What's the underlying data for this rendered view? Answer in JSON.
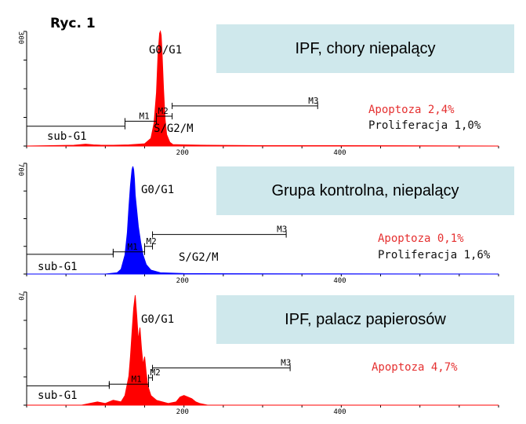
{
  "figure_label": "Ryc. 1",
  "chart_data": [
    {
      "type": "area",
      "title": "IPF, chory niepalący",
      "color": "#ff0000",
      "ylim": [
        0,
        300
      ],
      "xlim": [
        0,
        600
      ],
      "y_ticks": [
        "300"
      ],
      "x_ticks": [
        "200",
        "400"
      ],
      "x": [
        0,
        60,
        75,
        85,
        95,
        110,
        130,
        150,
        158,
        162,
        165,
        167,
        169,
        170,
        171,
        172,
        174,
        176,
        178,
        182,
        186,
        200,
        230,
        300,
        400,
        600
      ],
      "y": [
        0,
        2,
        5,
        3,
        2,
        2,
        3,
        6,
        20,
        60,
        140,
        240,
        295,
        300,
        290,
        250,
        150,
        70,
        30,
        10,
        4,
        3,
        2,
        1,
        1,
        0
      ],
      "labels": {
        "peak": "G0/G1",
        "subg1": "sub-G1",
        "sg2m": "S/G2/M",
        "m1": "M1",
        "m2": "M2",
        "m3": "M3"
      },
      "markers": {
        "subg1": {
          "x": 0,
          "y": 52
        },
        "m1": {
          "x1": 125,
          "x2": 165,
          "y": 65
        },
        "m2": {
          "x1": 165,
          "x2": 185,
          "y": 78
        },
        "m3": {
          "x1": 185,
          "x2": 370,
          "y": 105
        }
      },
      "annotations": [
        {
          "text": "Apoptoza 2,4%",
          "style": "apop"
        },
        {
          "text": "Proliferacja 1,0%",
          "style": "prol"
        }
      ]
    },
    {
      "type": "area",
      "title": "Grupa kontrolna, niepalący",
      "color": "#0000ff",
      "ylim": [
        0,
        700
      ],
      "xlim": [
        0,
        600
      ],
      "y_ticks": [
        "700"
      ],
      "x_ticks": [
        "200",
        "400"
      ],
      "x": [
        0,
        100,
        115,
        120,
        125,
        128,
        130,
        132,
        134,
        135,
        136,
        137,
        138,
        140,
        142,
        145,
        148,
        152,
        158,
        170,
        200,
        400,
        600
      ],
      "y": [
        0,
        0,
        8,
        30,
        120,
        260,
        420,
        560,
        660,
        680,
        660,
        600,
        500,
        400,
        300,
        200,
        120,
        60,
        25,
        8,
        3,
        1,
        0
      ],
      "labels": {
        "peak": "G0/G1",
        "subg1": "sub-G1",
        "sg2m": "S/G2/M",
        "m1": "M1",
        "m2": "M2",
        "m3": "M3"
      },
      "markers": {
        "subg1": {
          "x": 0,
          "y": 125
        },
        "m1": {
          "x1": 110,
          "x2": 150,
          "y": 140
        },
        "m2": {
          "x1": 150,
          "x2": 160,
          "y": 175
        },
        "m3": {
          "x1": 160,
          "x2": 330,
          "y": 250
        }
      },
      "annotations": [
        {
          "text": "Apoptoza 0,1%",
          "style": "apop"
        },
        {
          "text": "Proliferacja 1,6%",
          "style": "prol"
        }
      ]
    },
    {
      "type": "area",
      "title": "IPF, palacz papierosów",
      "color": "#ff0000",
      "ylim": [
        0,
        70
      ],
      "xlim": [
        0,
        600
      ],
      "y_ticks": [
        "70"
      ],
      "x_ticks": [
        "200",
        "400"
      ],
      "x": [
        0,
        70,
        80,
        90,
        100,
        110,
        120,
        125,
        130,
        132,
        134,
        136,
        138,
        140,
        142,
        144,
        146,
        148,
        150,
        152,
        154,
        158,
        165,
        180,
        190,
        195,
        200,
        205,
        210,
        215,
        220,
        230,
        300,
        600
      ],
      "y": [
        0,
        0,
        1,
        2,
        1,
        3,
        2,
        6,
        18,
        30,
        45,
        60,
        68,
        55,
        40,
        48,
        35,
        25,
        30,
        20,
        12,
        6,
        3,
        1,
        2,
        5,
        6,
        5,
        4,
        2,
        1,
        0,
        0,
        0
      ],
      "labels": {
        "peak": "G0/G1",
        "subg1": "sub-G1",
        "m1": "M1",
        "m2": "M2",
        "m3": "M3"
      },
      "markers": {
        "subg1": {
          "x": 0,
          "y": 12
        },
        "m1": {
          "x1": 105,
          "x2": 155,
          "y": 13
        },
        "m2": {
          "x1": 155,
          "x2": 160,
          "y": 17
        },
        "m3": {
          "x1": 160,
          "x2": 335,
          "y": 23
        }
      },
      "annotations": [
        {
          "text": "Apoptoza 4,7%",
          "style": "apop"
        }
      ]
    }
  ]
}
